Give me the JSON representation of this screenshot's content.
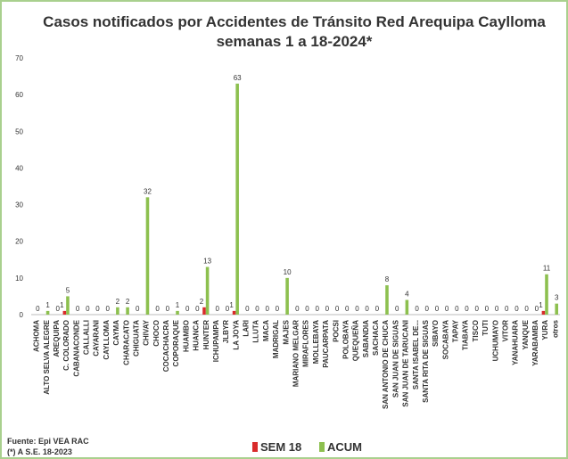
{
  "chart_data": {
    "type": "bar",
    "title": "Casos notificados  por Accidentes de Tránsito Red Arequipa Caylloma",
    "subtitle": "semanas 1 a 18-2024*",
    "categories": [
      "ACHOMA",
      "ALTO SELVA ALEGRE",
      "AREQUIPA",
      "C. COLORADO",
      "CABANACONDE",
      "CALLALLI",
      "CAYARANI",
      "CAYLLOMA",
      "CAYMA",
      "CHARACATO",
      "CHIGUATA",
      "CHIVAY",
      "CHOCO",
      "COCACHACRA",
      "COPORAQUE",
      "HUAMBO",
      "HUANCA",
      "HUNTER",
      "ICHUPAMPA",
      "JLBYR",
      "LA JOYA",
      "LARI",
      "LLUTA",
      "MACA",
      "MADRIGAL",
      "MAJES",
      "MARIANO MELGAR",
      "MIRAFLORES",
      "MOLLEBAYA",
      "PAUCARPATA",
      "POCSI",
      "POLOBAYA",
      "QUEQUEÑA",
      "SABANDIA",
      "SACHACA",
      "SAN ANTONIO DE CHUCA",
      "SAN JUAN DE SIGUAS",
      "SAN JUAN DE TARUCANI",
      "SANTA ISABEL DE...",
      "SANTA RITA DE SIGUAS",
      "SIBAYO",
      "SOCABAYA",
      "TAPAY",
      "TIABAYA",
      "TISCO",
      "TUTI",
      "UCHUMAYO",
      "VITOR",
      "YANAHUARA",
      "YANQUE",
      "YARABAMBA",
      "YURA",
      "otros"
    ],
    "series": [
      {
        "name": "SEM 18",
        "color": "#d92b2b",
        "values": [
          0,
          0,
          0,
          1,
          0,
          0,
          0,
          0,
          0,
          0,
          0,
          0,
          0,
          0,
          0,
          0,
          0,
          2,
          0,
          0,
          1,
          0,
          0,
          0,
          0,
          0,
          0,
          0,
          0,
          0,
          0,
          0,
          0,
          0,
          0,
          0,
          0,
          0,
          0,
          0,
          0,
          0,
          0,
          0,
          0,
          0,
          0,
          0,
          0,
          0,
          0,
          1,
          0
        ]
      },
      {
        "name": "ACUM",
        "color": "#8dc04f",
        "values": [
          0,
          1,
          0,
          5,
          0,
          0,
          0,
          0,
          2,
          2,
          0,
          32,
          0,
          0,
          1,
          0,
          0,
          13,
          0,
          0,
          63,
          0,
          0,
          0,
          0,
          10,
          0,
          0,
          0,
          0,
          0,
          0,
          0,
          0,
          0,
          8,
          0,
          4,
          0,
          0,
          0,
          0,
          0,
          0,
          0,
          0,
          0,
          0,
          0,
          0,
          0,
          11,
          3
        ]
      }
    ],
    "ylim": [
      0,
      70
    ],
    "yticks": [
      0,
      10,
      20,
      30,
      40,
      50,
      60,
      70
    ],
    "grid": false,
    "notes": [
      "Fuente: Epi VEA RAC",
      "(*) A S.E. 18-2023"
    ]
  }
}
